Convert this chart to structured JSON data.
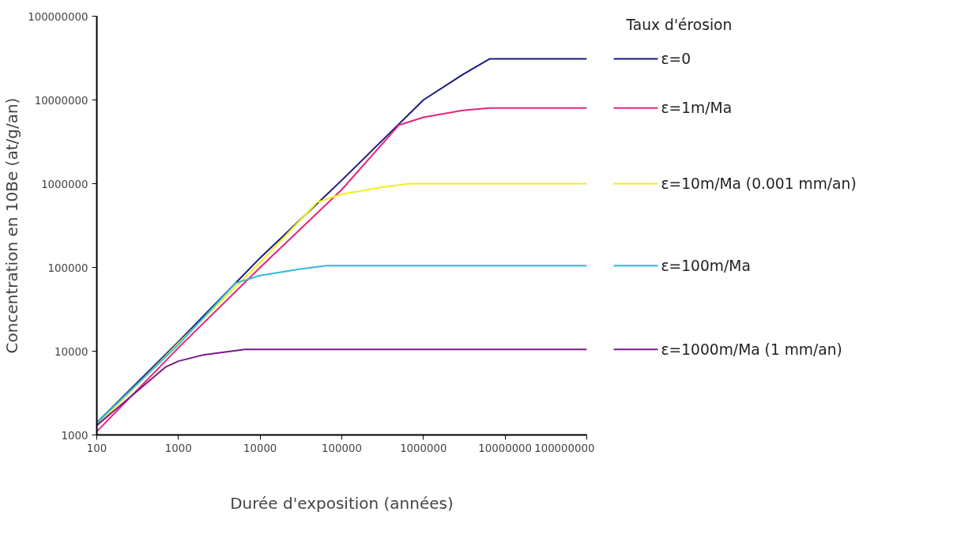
{
  "chart_data": {
    "type": "line",
    "xlabel": "Durée d'exposition (années)",
    "ylabel": "Concentration en 10Be (at/g/an)",
    "legend_title": "Taux d'érosion",
    "log": "xy",
    "grid": false,
    "legend": "right",
    "marker": "none",
    "line_style": "solid",
    "xlim": [
      100,
      100000000
    ],
    "xticks": [
      100,
      1000,
      10000,
      100000,
      1000000,
      10000000,
      100000000
    ],
    "ylim": [
      1000,
      100000000
    ],
    "yticks": [
      1000,
      10000,
      100000,
      1000000,
      10000000,
      100000000
    ],
    "series": [
      {
        "name": "ε=0",
        "color": "#1a1a80",
        "x": [
          100,
          1000,
          10000,
          100000,
          1000000,
          3000000,
          6500000,
          100000000
        ],
        "values": [
          1400,
          13000,
          130000,
          1100000,
          10000000,
          20000000,
          31000000,
          31000000
        ]
      },
      {
        "name": "ε=1m/Ma",
        "color": "#e8247a",
        "x": [
          100,
          1000,
          10000,
          100000,
          500000,
          1000000,
          3000000,
          6500000,
          100000000
        ],
        "values": [
          1100,
          11000,
          100000,
          850000,
          5000000,
          6200000,
          7500000,
          8000000,
          8000000
        ]
      },
      {
        "name": "ε=10m/Ma (0.001 mm/an)",
        "color": "#f0f020",
        "x": [
          100,
          1000,
          10000,
          50000,
          100000,
          300000,
          650000,
          100000000
        ],
        "values": [
          1300,
          12500,
          115000,
          600000,
          750000,
          900000,
          1000000,
          1000000
        ]
      },
      {
        "name": "ε=100m/Ma",
        "color": "#30b8d8",
        "x": [
          100,
          1000,
          5000,
          10000,
          30000,
          65000,
          100000000
        ],
        "values": [
          1400,
          12000,
          65000,
          80000,
          95000,
          105000,
          105000
        ]
      },
      {
        "name": "ε=1000m/Ma (1 mm/an)",
        "color": "#7a1a8a",
        "x": [
          100,
          700,
          1000,
          2000,
          6500,
          100000000
        ],
        "values": [
          1300,
          6500,
          7600,
          9000,
          10500,
          10500
        ]
      }
    ]
  }
}
